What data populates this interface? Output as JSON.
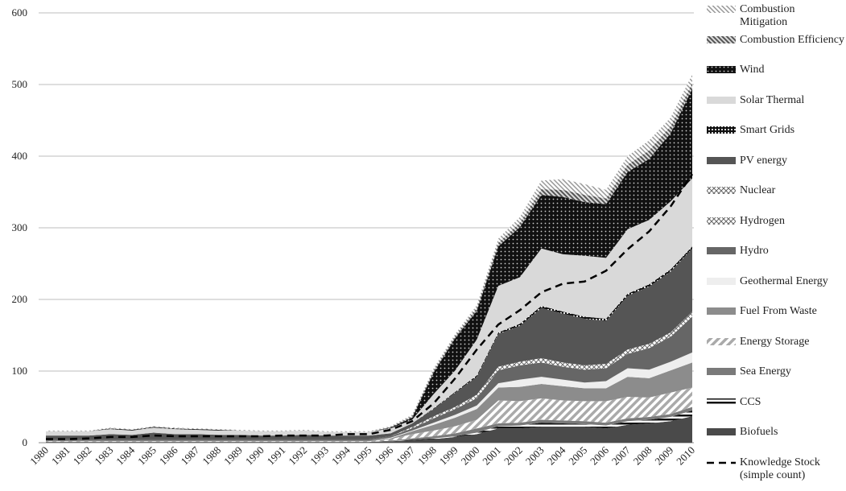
{
  "chart_data": {
    "type": "stacked-area",
    "categories": [
      "1980",
      "1981",
      "1982",
      "1983",
      "1984",
      "1985",
      "1986",
      "1987",
      "1988",
      "1989",
      "1990",
      "1991",
      "1992",
      "1993",
      "1994",
      "1995",
      "1996",
      "1997",
      "1998",
      "1999",
      "2000",
      "2001",
      "2002",
      "2003",
      "2004",
      "2005",
      "2006",
      "2007",
      "2008",
      "2009",
      "2010"
    ],
    "ylim": [
      0,
      600
    ],
    "yticks": [
      0,
      100,
      200,
      300,
      400,
      500,
      600
    ],
    "grid": true,
    "series": [
      {
        "name": "Biofuels",
        "color": "#4a4a4a",
        "values": [
          1,
          1,
          1,
          1,
          1,
          1,
          1,
          1,
          1,
          1,
          1,
          1,
          1,
          1,
          1,
          1,
          2,
          3,
          5,
          8,
          12,
          20,
          20,
          22,
          22,
          22,
          20,
          25,
          27,
          30,
          37
        ]
      },
      {
        "name": "CCS",
        "color": "#222222",
        "pattern": "stripes",
        "values": [
          0,
          0,
          0,
          0,
          0,
          0,
          0,
          0,
          0,
          0,
          0,
          0,
          0,
          0,
          0,
          0,
          0,
          1,
          1,
          1,
          2,
          3,
          4,
          6,
          5,
          4,
          4,
          5,
          5,
          6,
          8
        ]
      },
      {
        "name": "Sea Energy",
        "color": "#7a7a7a",
        "values": [
          0,
          0,
          0,
          0,
          0,
          0,
          0,
          0,
          0,
          0,
          0,
          0,
          0,
          0,
          0,
          0,
          1,
          2,
          3,
          4,
          6,
          4,
          4,
          4,
          4,
          4,
          4,
          4,
          4,
          4,
          5
        ]
      },
      {
        "name": "Energy Storage",
        "color": "#bbbbbb",
        "pattern": "hatch",
        "values": [
          1,
          1,
          1,
          1,
          1,
          1,
          1,
          1,
          1,
          1,
          1,
          1,
          1,
          1,
          1,
          1,
          2,
          6,
          8,
          10,
          12,
          32,
          30,
          30,
          28,
          28,
          30,
          30,
          27,
          30,
          27
        ]
      },
      {
        "name": "Fuel From Waste",
        "color": "#8c8c8c",
        "values": [
          1,
          1,
          1,
          1,
          1,
          1,
          1,
          1,
          1,
          1,
          1,
          1,
          1,
          1,
          1,
          1,
          1,
          4,
          8,
          12,
          15,
          18,
          20,
          20,
          20,
          18,
          18,
          28,
          27,
          31,
          35
        ]
      },
      {
        "name": "Geothermal Energy",
        "color": "#eeeeee",
        "values": [
          0,
          0,
          0,
          0,
          0,
          0,
          0,
          0,
          0,
          0,
          0,
          0,
          0,
          0,
          0,
          0,
          1,
          1,
          3,
          4,
          5,
          6,
          10,
          10,
          9,
          8,
          10,
          12,
          12,
          12,
          14
        ]
      },
      {
        "name": "Hydro",
        "color": "#666666",
        "values": [
          2,
          2,
          2,
          2,
          2,
          2,
          2,
          2,
          2,
          2,
          2,
          2,
          2,
          2,
          2,
          2,
          2,
          3,
          6,
          8,
          10,
          18,
          20,
          20,
          18,
          18,
          18,
          20,
          30,
          35,
          50
        ]
      },
      {
        "name": "Hydrogen",
        "color": "#999999",
        "pattern": "cross",
        "values": [
          0,
          0,
          0,
          0,
          0,
          0,
          0,
          0,
          0,
          0,
          0,
          0,
          0,
          0,
          0,
          0,
          0,
          1,
          2,
          2,
          3,
          3,
          3,
          3,
          3,
          3,
          3,
          3,
          3,
          3,
          4
        ]
      },
      {
        "name": "Nuclear",
        "color": "#ffffff",
        "pattern": "cross",
        "values": [
          0,
          0,
          0,
          0,
          0,
          0,
          0,
          0,
          0,
          0,
          0,
          0,
          0,
          0,
          0,
          0,
          0,
          1,
          1,
          1,
          2,
          2,
          2,
          3,
          3,
          3,
          3,
          3,
          3,
          3,
          3
        ]
      },
      {
        "name": "PV energy",
        "color": "#555555",
        "values": [
          5,
          5,
          5,
          7,
          6,
          9,
          7,
          7,
          6,
          6,
          5,
          5,
          6,
          5,
          5,
          5,
          4,
          5,
          10,
          20,
          25,
          46,
          50,
          70,
          68,
          65,
          60,
          75,
          80,
          85,
          88
        ]
      },
      {
        "name": "Smart Grids",
        "color": "#333333",
        "pattern": "grid",
        "values": [
          0,
          0,
          0,
          0,
          0,
          0,
          0,
          0,
          0,
          0,
          0,
          0,
          0,
          0,
          0,
          0,
          0,
          0,
          1,
          1,
          2,
          2,
          3,
          3,
          3,
          3,
          3,
          3,
          3,
          3,
          3
        ]
      },
      {
        "name": "Solar Thermal",
        "color": "#d9d9d9",
        "values": [
          6,
          6,
          6,
          7,
          6,
          7,
          7,
          6,
          6,
          6,
          6,
          6,
          6,
          5,
          5,
          5,
          7,
          5,
          20,
          30,
          50,
          65,
          65,
          80,
          80,
          85,
          85,
          90,
          90,
          95,
          95
        ]
      },
      {
        "name": "Wind",
        "color": "#1a1a1a",
        "pattern": "dots",
        "values": [
          0,
          0,
          0,
          1,
          1,
          1,
          1,
          1,
          1,
          0,
          0,
          0,
          0,
          0,
          0,
          0,
          1,
          3,
          30,
          45,
          40,
          55,
          70,
          75,
          80,
          75,
          75,
          80,
          85,
          95,
          125
        ]
      },
      {
        "name": "Combustion Efficiency",
        "color": "#888888",
        "pattern": "hatch-dark",
        "values": [
          0,
          0,
          0,
          0,
          0,
          0,
          0,
          0,
          0,
          0,
          0,
          0,
          0,
          0,
          0,
          0,
          1,
          2,
          3,
          3,
          4,
          5,
          6,
          8,
          10,
          10,
          8,
          10,
          12,
          10,
          8
        ]
      },
      {
        "name": "Combustion Mitigation",
        "color": "#cccccc",
        "pattern": "hatch-light",
        "values": [
          1,
          1,
          1,
          1,
          1,
          1,
          1,
          1,
          1,
          1,
          1,
          1,
          1,
          1,
          1,
          1,
          1,
          2,
          3,
          3,
          4,
          6,
          8,
          12,
          15,
          15,
          12,
          12,
          14,
          12,
          12
        ]
      }
    ],
    "line": {
      "name": "Knowledge Stock (simple count)",
      "color": "#000000",
      "dashed": true,
      "values": [
        5,
        5,
        6,
        8,
        8,
        10,
        9,
        9,
        9,
        9,
        9,
        10,
        10,
        10,
        12,
        12,
        18,
        30,
        55,
        90,
        130,
        165,
        185,
        210,
        222,
        225,
        240,
        270,
        295,
        330,
        375
      ]
    }
  }
}
